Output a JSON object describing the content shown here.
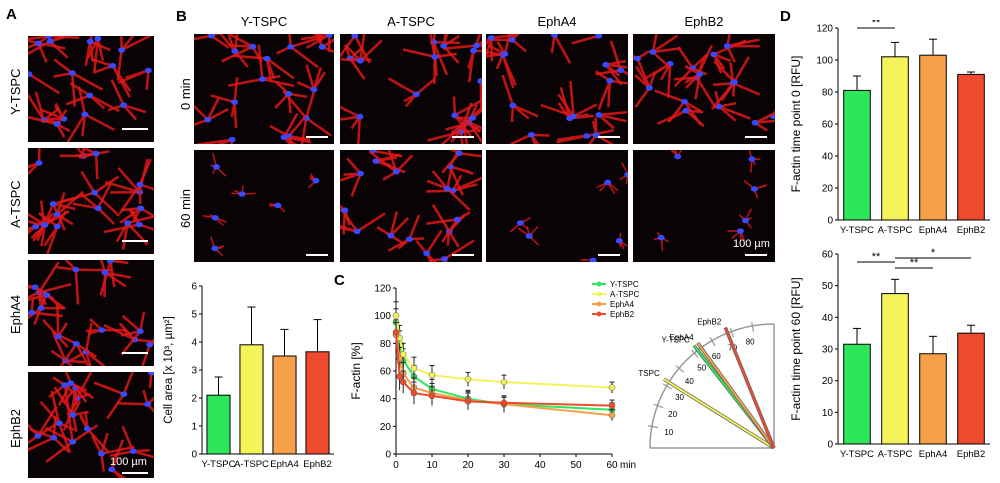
{
  "panels": {
    "a": {
      "letter": "A",
      "rows": [
        "Y-TSPC",
        "A-TSPC",
        "EphA4",
        "EphB2"
      ],
      "scalebar": "100 µm"
    },
    "b": {
      "letter": "B",
      "columns": [
        "Y-TSPC",
        "A-TSPC",
        "EphA4",
        "EphB2"
      ],
      "rows": [
        "0 min",
        "60 min"
      ],
      "scalebar": "100 µm"
    },
    "c": {
      "letter": "C"
    },
    "d": {
      "letter": "D"
    }
  },
  "colors": {
    "Y-TSPC": "#2ee65a",
    "A-TSPC": "#f4f45a",
    "EphA4": "#f6a04a",
    "EphB2": "#ef4a2e"
  },
  "chart_data": [
    {
      "id": "cell-area",
      "type": "bar",
      "categories": [
        "Y-TSPC",
        "A-TSPC",
        "EphA4",
        "EphB2"
      ],
      "values": [
        2.1,
        3.9,
        3.5,
        3.65
      ],
      "errors": [
        0.65,
        1.35,
        0.95,
        1.15
      ],
      "ylabel": "Cell area [x 10³, µm²]",
      "ylim": [
        0,
        6
      ],
      "yticks": [
        0,
        1,
        2,
        3,
        4,
        5,
        6
      ]
    },
    {
      "id": "f-actin-time",
      "type": "line",
      "ylabel": "F-actin [%]",
      "xlabel": "min",
      "xlim": [
        0,
        60
      ],
      "ylim": [
        0,
        120
      ],
      "xticks": [
        0,
        10,
        20,
        30,
        40,
        50,
        60
      ],
      "yticks": [
        0,
        20,
        40,
        60,
        80,
        100,
        120
      ],
      "legend_position": "top-right",
      "series": [
        {
          "name": "Y-TSPC",
          "x": [
            0,
            1,
            2,
            5,
            10,
            20,
            30,
            60
          ],
          "y": [
            95,
            80,
            68,
            56,
            47,
            40,
            36,
            32
          ],
          "err": [
            10,
            9,
            8,
            8,
            7,
            6,
            6,
            5
          ]
        },
        {
          "name": "A-TSPC",
          "x": [
            0,
            1,
            2,
            5,
            10,
            20,
            30,
            60
          ],
          "y": [
            100,
            84,
            72,
            62,
            57,
            54,
            52,
            48
          ],
          "err": [
            10,
            9,
            8,
            8,
            7,
            5,
            5,
            4
          ]
        },
        {
          "name": "EphA4",
          "x": [
            0,
            1,
            2,
            5,
            10,
            20,
            30,
            60
          ],
          "y": [
            86,
            69,
            58,
            48,
            44,
            39,
            36,
            28
          ],
          "err": [
            9,
            8,
            8,
            7,
            7,
            6,
            5,
            4
          ]
        },
        {
          "name": "EphB2",
          "x": [
            0,
            1,
            2,
            5,
            10,
            20,
            30,
            60
          ],
          "y": [
            88,
            56,
            52,
            44,
            42,
            38,
            37,
            35
          ],
          "err": [
            9,
            10,
            8,
            8,
            7,
            6,
            5,
            4
          ]
        }
      ]
    },
    {
      "id": "slope-angles",
      "type": "line",
      "ticks": [
        10,
        20,
        30,
        40,
        50,
        60,
        70,
        80
      ],
      "series": [
        {
          "name": "A-TSPC",
          "angle": 32
        },
        {
          "name": "Y-TSPC",
          "angle": 52
        },
        {
          "name": "EphA4",
          "angle": 54
        },
        {
          "name": "EphB2",
          "angle": 68
        }
      ]
    },
    {
      "id": "f-actin-0",
      "type": "bar",
      "categories": [
        "Y-TSPC",
        "A-TSPC",
        "EphA4",
        "EphB2"
      ],
      "values": [
        81,
        102,
        103,
        91
      ],
      "errors": [
        9,
        9,
        10,
        1.5
      ],
      "ylabel": "F-actin time point 0 [RFU]",
      "ylim": [
        0,
        120
      ],
      "yticks": [
        0,
        20,
        40,
        60,
        80,
        100,
        120
      ],
      "significance": [
        {
          "from": "Y-TSPC",
          "to": "A-TSPC",
          "label": "**"
        }
      ]
    },
    {
      "id": "f-actin-60",
      "type": "bar",
      "categories": [
        "Y-TSPC",
        "A-TSPC",
        "EphA4",
        "EphB2"
      ],
      "values": [
        31.5,
        47.5,
        28.5,
        35
      ],
      "errors": [
        5,
        4.5,
        5.5,
        2.5
      ],
      "ylabel": "F-actin time point 60 [RFU]",
      "ylim": [
        0,
        60
      ],
      "yticks": [
        0,
        10,
        20,
        30,
        40,
        50,
        60
      ],
      "significance": [
        {
          "from": "Y-TSPC",
          "to": "A-TSPC",
          "label": "**"
        },
        {
          "from": "A-TSPC",
          "to": "EphA4",
          "label": "**"
        },
        {
          "from": "A-TSPC",
          "to": "EphB2",
          "label": "*"
        }
      ]
    }
  ]
}
